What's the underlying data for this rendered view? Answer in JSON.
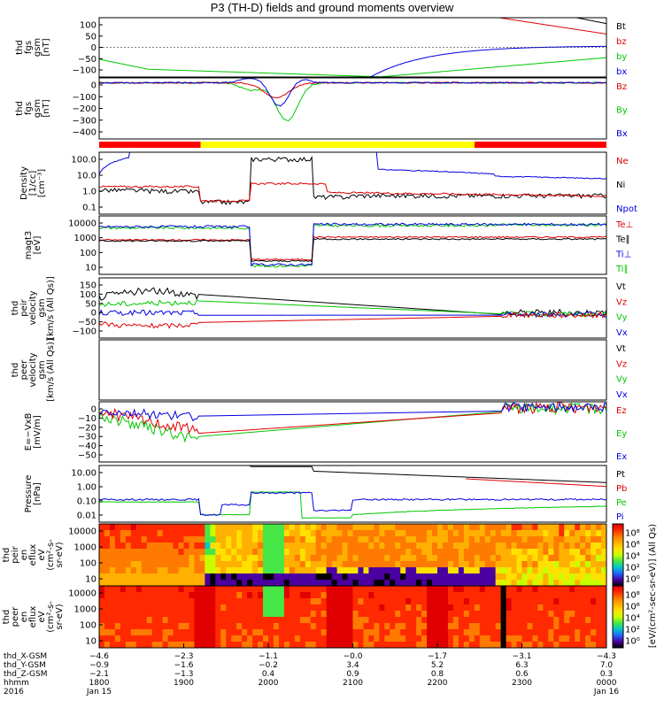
{
  "chart_data": {
    "type": "line",
    "title": "P3 (TH-D) fields and ground moments overview",
    "time": {
      "ticks": [
        "1800",
        "1900",
        "2000",
        "2100",
        "2200",
        "2300",
        "0000"
      ],
      "dates": [
        "Jan 15",
        "Jan 16"
      ],
      "year": "2016",
      "hhmm_label": "hhmm"
    },
    "panels": [
      {
        "id": "fgs_ctx",
        "ylabel": [
          "thd",
          "fgs",
          "gsm",
          "[nT]"
        ],
        "yrange": [
          -100,
          100
        ],
        "ticks": [
          "100",
          "50",
          "0",
          "−50",
          "−100"
        ],
        "legend": [
          {
            "label": "Bt",
            "color": "#000000"
          },
          {
            "label": "bz",
            "color": "#e00000"
          },
          {
            "label": "by",
            "color": "#00c800"
          },
          {
            "label": "bx",
            "color": "#0000e0"
          }
        ]
      },
      {
        "id": "fgs_zoom",
        "ylabel": [
          "thd",
          "fgs",
          "gsm",
          "[nT]"
        ],
        "yrange": [
          -460,
          40
        ],
        "ticks": [
          "0",
          "−100",
          "−200",
          "−300",
          "−400"
        ],
        "legend": [
          {
            "label": "Bz",
            "color": "#e00000"
          },
          {
            "label": "By",
            "color": "#00c800"
          },
          {
            "label": "Bx",
            "color": "#0000e0"
          }
        ]
      },
      {
        "id": "mode_bar",
        "segments": [
          {
            "from": 0,
            "to": 0.2,
            "color": "#ff0000"
          },
          {
            "from": 0.2,
            "to": 0.74,
            "color": "#ffff00"
          },
          {
            "from": 0.74,
            "to": 1,
            "color": "#ff0000"
          }
        ]
      },
      {
        "id": "density",
        "ylabel": [
          "Density",
          "[1/cc]",
          "[cm⁻³]"
        ],
        "log": true,
        "yrange": [
          0.05,
          200
        ],
        "ticks": [
          "100.0",
          "10.0",
          "1.0",
          "0.1"
        ],
        "legend": [
          {
            "label": "Ne",
            "color": "#e00000"
          },
          {
            "label": "Ni",
            "color": "#000000"
          },
          {
            "label": "Npot",
            "color": "#0000e0"
          }
        ]
      },
      {
        "id": "temp",
        "ylabel": [
          "magt3",
          "[eV]"
        ],
        "log": true,
        "yrange": [
          3,
          12000
        ],
        "ticks": [
          "10000",
          "1000",
          "100",
          "10"
        ],
        "legend": [
          {
            "label": "Te⊥",
            "color": "#e00000"
          },
          {
            "label": "Te∥",
            "color": "#000000"
          },
          {
            "label": "Ti⊥",
            "color": "#0000e0"
          },
          {
            "label": "Ti∥",
            "color": "#00c800"
          }
        ]
      },
      {
        "id": "ion_vel",
        "ylabel": [
          "thd",
          "peir",
          "velocity",
          "gsm",
          "[km/s (All Qs)]"
        ],
        "yrange": [
          -100,
          150
        ],
        "ticks": [
          "150",
          "100",
          "50",
          "0",
          "−50",
          "−100"
        ],
        "legend": [
          {
            "label": "Vt",
            "color": "#000000"
          },
          {
            "label": "Vz",
            "color": "#e00000"
          },
          {
            "label": "Vy",
            "color": "#00c800"
          },
          {
            "label": "Vx",
            "color": "#0000e0"
          }
        ]
      },
      {
        "id": "ele_vel",
        "ylabel": [
          "thd",
          "peer",
          "velocity",
          "gsm",
          "[km/s (All Qs)]"
        ],
        "yrange": [
          -100,
          150
        ],
        "ticks": [],
        "legend": [
          {
            "label": "Vt",
            "color": "#000000"
          },
          {
            "label": "Vz",
            "color": "#e00000"
          },
          {
            "label": "Vy",
            "color": "#00c800"
          },
          {
            "label": "Vx",
            "color": "#0000e0"
          }
        ]
      },
      {
        "id": "efield",
        "ylabel": [
          "E=−VxB",
          "[mV/m]"
        ],
        "yrange": [
          -50,
          5
        ],
        "ticks": [
          "0",
          "−10",
          "−20",
          "−30",
          "−40",
          "−50"
        ],
        "legend": [
          {
            "label": "Ez",
            "color": "#e00000"
          },
          {
            "label": "Ey",
            "color": "#00c800"
          },
          {
            "label": "Ex",
            "color": "#0000e0"
          }
        ]
      },
      {
        "id": "pressure",
        "ylabel": [
          "Pressure",
          "[nPa]"
        ],
        "log": true,
        "yrange": [
          0.003,
          30
        ],
        "ticks": [
          "10.00",
          "1.00",
          "0.10",
          "0.01"
        ],
        "legend": [
          {
            "label": "Pt",
            "color": "#000000"
          },
          {
            "label": "Pb",
            "color": "#e00000"
          },
          {
            "label": "Pe",
            "color": "#00c800"
          },
          {
            "label": "Pi",
            "color": "#0000e0"
          }
        ]
      },
      {
        "id": "ion_spec",
        "ylabel": [
          "thd",
          "peir",
          "en",
          "eflux",
          "eV",
          "(cm²-s-",
          "sr-eV)"
        ],
        "ticks": [
          "10000",
          "1000",
          "100",
          "10"
        ]
      },
      {
        "id": "ele_spec",
        "ylabel": [
          "thd",
          "peer",
          "en",
          "eflux",
          "eV",
          "(cm²-s-",
          "sr-eV)"
        ],
        "ticks": [
          "10000",
          "1000",
          "100",
          "10"
        ]
      }
    ],
    "colorbar": {
      "label": "[eV/(cm²-sec-sr-eV)] (All Qs)",
      "ticks_top": [
        "10⁸",
        "10⁶",
        "10⁴",
        "10²",
        "10⁰"
      ],
      "ticks_bottom": [
        "10⁸",
        "10⁶",
        "10⁴",
        "10²",
        "10⁰"
      ]
    },
    "ephemeris": [
      {
        "label": "thd_X-GSM",
        "values": [
          "−4.6",
          "−2.3",
          "−1.1",
          "−0.0",
          "−1.7",
          "−3.1",
          "−4.3"
        ]
      },
      {
        "label": "thd_Y-GSM",
        "values": [
          "−0.9",
          "−1.6",
          "−0.2",
          "3.4",
          "5.2",
          "6.3",
          "7.0"
        ]
      },
      {
        "label": "thd_Z-GSM",
        "values": [
          "−2.1",
          "−1.3",
          "0.4",
          "0.9",
          "0.8",
          "0.6",
          "0.3"
        ]
      }
    ]
  }
}
